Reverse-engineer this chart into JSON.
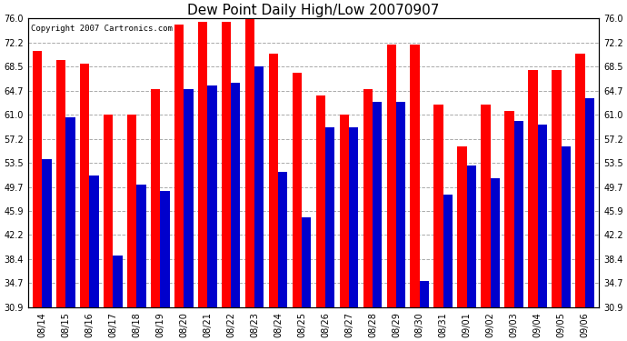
{
  "title": "Dew Point Daily High/Low 20070907",
  "copyright": "Copyright 2007 Cartronics.com",
  "dates": [
    "08/14",
    "08/15",
    "08/16",
    "08/17",
    "08/18",
    "08/19",
    "08/20",
    "08/21",
    "08/22",
    "08/23",
    "08/24",
    "08/25",
    "08/26",
    "08/27",
    "08/28",
    "08/29",
    "08/30",
    "08/31",
    "09/01",
    "09/02",
    "09/03",
    "09/04",
    "09/05",
    "09/06"
  ],
  "highs": [
    71.0,
    69.5,
    69.0,
    61.0,
    61.0,
    65.0,
    75.0,
    75.5,
    75.5,
    76.0,
    70.5,
    67.5,
    64.0,
    61.0,
    65.0,
    72.0,
    72.0,
    62.5,
    56.0,
    62.5,
    61.5,
    68.0,
    68.0,
    70.5
  ],
  "lows": [
    54.0,
    60.5,
    51.5,
    39.0,
    50.0,
    49.0,
    65.0,
    65.5,
    66.0,
    68.5,
    52.0,
    45.0,
    59.0,
    59.0,
    63.0,
    63.0,
    35.0,
    48.5,
    53.0,
    51.0,
    60.0,
    59.5,
    56.0,
    63.5
  ],
  "high_color": "#ff0000",
  "low_color": "#0000cc",
  "bg_color": "#ffffff",
  "plot_bg_color": "#ffffff",
  "grid_color": "#aaaaaa",
  "ymin": 30.9,
  "ymax": 76.0,
  "yticks": [
    30.9,
    34.7,
    38.4,
    42.2,
    45.9,
    49.7,
    53.5,
    57.2,
    61.0,
    64.7,
    68.5,
    72.2,
    76.0
  ],
  "bar_width": 0.4,
  "title_fontsize": 11,
  "tick_fontsize": 7,
  "copyright_fontsize": 6.5
}
